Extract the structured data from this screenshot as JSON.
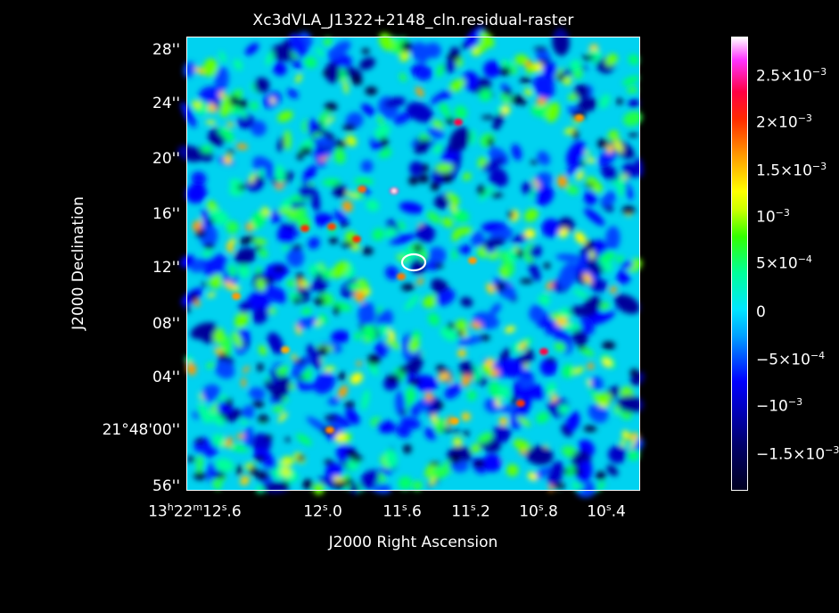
{
  "title": "Xc3dVLA_J1322+2148_cln.residual-raster",
  "xlabel": "J2000 Right Ascension",
  "ylabel": "J2000 Declination",
  "y_ticks": [
    "28''",
    "24''",
    "20''",
    "16''",
    "12''",
    "08''",
    "04''",
    "21°48'00''",
    "56''"
  ],
  "x_ticks": [
    {
      "main": "13",
      "h": "h",
      "m_val": "22",
      "m": "m",
      "s_val": "12",
      "s": "s",
      "rest": ".6"
    },
    {
      "text": "12",
      "s": "s",
      "rest": ".0"
    },
    {
      "text": "11",
      "s": "s",
      "rest": ".6"
    },
    {
      "text": "11",
      "s": "s",
      "rest": ".2"
    },
    {
      "text": "10",
      "s": "s",
      "rest": ".8"
    },
    {
      "text": "10",
      "s": "s",
      "rest": ".4"
    }
  ],
  "colorbar_ticks": [
    {
      "mant": "2.5×10",
      "exp": "−3"
    },
    {
      "mant": "2×10",
      "exp": "−3"
    },
    {
      "mant": "1.5×10",
      "exp": "−3"
    },
    {
      "mant": "10",
      "exp": "−3"
    },
    {
      "mant": "5×10",
      "exp": "−4"
    },
    {
      "mant": "0",
      "exp": ""
    },
    {
      "mant": "−5×10",
      "exp": "−4"
    },
    {
      "mant": "−10",
      "exp": "−3"
    },
    {
      "mant": "−1.5×10",
      "exp": "−3"
    }
  ],
  "colors": {
    "background": "#000000",
    "field": "#00d2f0",
    "contour": "#ffffff"
  }
}
